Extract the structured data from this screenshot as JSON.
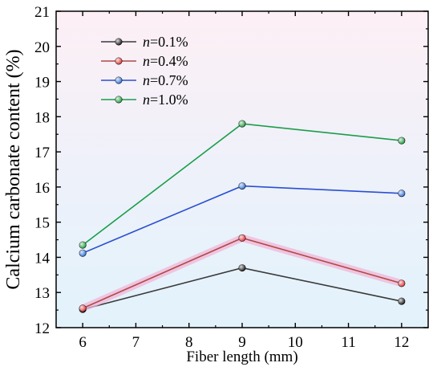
{
  "chart_data": {
    "type": "line",
    "xlabel": "Fiber length (mm)",
    "ylabel": "Calcium carbonate content (%)",
    "xlim": [
      5.5,
      12.5
    ],
    "ylim": [
      12,
      21
    ],
    "xticks": [
      6,
      7,
      8,
      9,
      10,
      11,
      12
    ],
    "yticks": [
      12,
      13,
      14,
      15,
      16,
      17,
      18,
      19,
      20,
      21
    ],
    "x": [
      6,
      9,
      12
    ],
    "legend_position": "top-left",
    "grid": false,
    "background": "vertical gradient, pink at top to light blue at bottom",
    "series": [
      {
        "name_var": "n",
        "name_value": "=0.1%",
        "color": "#3a3a3a",
        "marker": "#111111",
        "values": [
          12.52,
          13.7,
          12.75
        ]
      },
      {
        "name_var": "n",
        "name_value": "=0.4%",
        "color": "#b04848",
        "marker": "#e03030",
        "values": [
          12.55,
          14.55,
          13.26
        ]
      },
      {
        "name_var": "n",
        "name_value": "=0.7%",
        "color": "#2a4fd0",
        "marker": "#2a6fd8",
        "values": [
          14.12,
          16.03,
          15.82
        ]
      },
      {
        "name_var": "n",
        "name_value": "=1.0%",
        "color": "#1a9e4a",
        "marker": "#1a9e3a",
        "values": [
          14.35,
          17.8,
          17.32
        ]
      }
    ]
  }
}
